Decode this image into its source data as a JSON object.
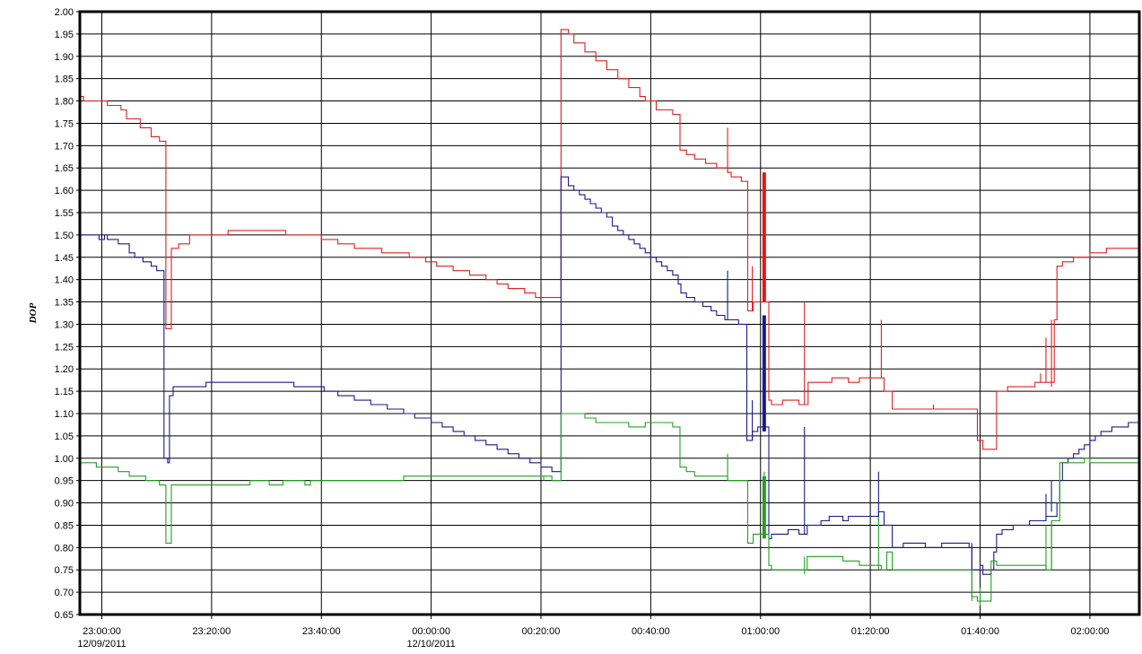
{
  "chart_data": {
    "type": "line",
    "ylabel": "DOP",
    "ylim": [
      0.65,
      2.0
    ],
    "ytick_step": 0.05,
    "xlim": [
      "2011-12-09T22:56:00",
      "2011-12-10T02:09:00"
    ],
    "grid": true,
    "x_ticks": [
      {
        "time": "2011-12-09T23:00:00",
        "label": "23:00:00",
        "sublabel": "12/09/2011"
      },
      {
        "time": "2011-12-09T23:20:00",
        "label": "23:20:00",
        "sublabel": ""
      },
      {
        "time": "2011-12-09T23:40:00",
        "label": "23:40:00",
        "sublabel": ""
      },
      {
        "time": "2011-12-10T00:00:00",
        "label": "00:00:00",
        "sublabel": "12/10/2011"
      },
      {
        "time": "2011-12-10T00:20:00",
        "label": "00:20:00",
        "sublabel": ""
      },
      {
        "time": "2011-12-10T00:40:00",
        "label": "00:40:00",
        "sublabel": ""
      },
      {
        "time": "2011-12-10T01:00:00",
        "label": "01:00:00",
        "sublabel": ""
      },
      {
        "time": "2011-12-10T01:20:00",
        "label": "01:20:00",
        "sublabel": ""
      },
      {
        "time": "2011-12-10T01:40:00",
        "label": "01:40:00",
        "sublabel": ""
      },
      {
        "time": "2011-12-10T02:00:00",
        "label": "02:00:00",
        "sublabel": ""
      }
    ],
    "series": [
      {
        "color": "#e02020",
        "step": true,
        "points": [
          [
            "22:56:00",
            1.81
          ],
          [
            "22:56:40",
            1.8
          ],
          [
            "23:01:00",
            1.79
          ],
          [
            "23:03:30",
            1.78
          ],
          [
            "23:04:30",
            1.76
          ],
          [
            "23:07:00",
            1.74
          ],
          [
            "23:09:00",
            1.72
          ],
          [
            "23:10:30",
            1.71
          ],
          [
            "23:11:40",
            1.29
          ],
          [
            "23:12:40",
            1.47
          ],
          [
            "23:14:00",
            1.48
          ],
          [
            "23:16:00",
            1.5
          ],
          [
            "23:23:00",
            1.51
          ],
          [
            "23:33:30",
            1.5
          ],
          [
            "23:40:00",
            1.49
          ],
          [
            "23:43:00",
            1.48
          ],
          [
            "23:46:00",
            1.47
          ],
          [
            "23:51:00",
            1.46
          ],
          [
            "23:56:00",
            1.45
          ],
          [
            "23:59:00",
            1.44
          ],
          [
            "00:01:00",
            1.43
          ],
          [
            "00:04:00",
            1.42
          ],
          [
            "00:07:00",
            1.41
          ],
          [
            "00:10:00",
            1.4
          ],
          [
            "00:12:00",
            1.39
          ],
          [
            "00:14:00",
            1.38
          ],
          [
            "00:17:00",
            1.37
          ],
          [
            "00:19:00",
            1.36
          ],
          [
            "00:23:40",
            1.96
          ],
          [
            "00:25:00",
            1.95
          ],
          [
            "00:26:00",
            1.93
          ],
          [
            "00:28:00",
            1.91
          ],
          [
            "00:30:00",
            1.89
          ],
          [
            "00:32:00",
            1.87
          ],
          [
            "00:34:00",
            1.85
          ],
          [
            "00:36:00",
            1.83
          ],
          [
            "00:38:00",
            1.81
          ],
          [
            "00:39:00",
            1.8
          ],
          [
            "00:41:00",
            1.78
          ],
          [
            "00:44:00",
            1.77
          ],
          [
            "00:45:20",
            1.69
          ],
          [
            "00:46:30",
            1.68
          ],
          [
            "00:48:00",
            1.67
          ],
          [
            "00:50:00",
            1.66
          ],
          [
            "00:52:00",
            1.65
          ],
          [
            "00:54:00",
            1.64
          ],
          [
            "00:54:40",
            1.63
          ],
          [
            "00:56:30",
            1.62
          ],
          [
            "00:57:40",
            1.33
          ],
          [
            "00:58:40",
            1.35
          ],
          [
            "01:01:30",
            1.13
          ],
          [
            "01:02:00",
            1.12
          ],
          [
            "01:04:00",
            1.13
          ],
          [
            "01:07:00",
            1.12
          ],
          [
            "01:08:40",
            1.17
          ],
          [
            "01:13:00",
            1.18
          ],
          [
            "01:16:00",
            1.17
          ],
          [
            "01:18:00",
            1.18
          ],
          [
            "01:22:30",
            1.15
          ],
          [
            "01:24:00",
            1.11
          ],
          [
            "01:39:30",
            1.04
          ],
          [
            "01:40:30",
            1.02
          ],
          [
            "01:43:00",
            1.15
          ],
          [
            "01:45:00",
            1.16
          ],
          [
            "01:50:00",
            1.17
          ],
          [
            "01:52:30",
            1.17
          ],
          [
            "01:53:30",
            1.31
          ],
          [
            "01:54:00",
            1.43
          ],
          [
            "01:55:00",
            1.44
          ],
          [
            "01:57:00",
            1.45
          ],
          [
            "02:00:00",
            1.46
          ],
          [
            "02:03:00",
            1.47
          ],
          [
            "02:09:00",
            1.47
          ]
        ],
        "spikes": [
          [
            "00:54:00",
            1.64,
            1.74
          ],
          [
            "00:58:30",
            1.33,
            1.43
          ],
          [
            "01:00:40",
            1.35,
            1.64
          ],
          [
            "01:08:00",
            1.12,
            1.35
          ],
          [
            "01:22:00",
            1.18,
            1.31
          ],
          [
            "01:31:30",
            1.11,
            1.12
          ],
          [
            "01:51:00",
            1.17,
            1.19
          ],
          [
            "01:52:00",
            1.17,
            1.27
          ],
          [
            "01:53:00",
            1.16,
            1.31
          ]
        ]
      },
      {
        "color": "#1a1a8c",
        "step": true,
        "points": [
          [
            "22:56:00",
            1.5
          ],
          [
            "22:59:30",
            1.49
          ],
          [
            "23:00:30",
            1.5
          ],
          [
            "23:01:00",
            1.49
          ],
          [
            "23:03:00",
            1.48
          ],
          [
            "23:05:00",
            1.46
          ],
          [
            "23:06:00",
            1.45
          ],
          [
            "23:07:30",
            1.44
          ],
          [
            "23:09:00",
            1.43
          ],
          [
            "23:10:00",
            1.42
          ],
          [
            "23:11:20",
            1.0
          ],
          [
            "23:12:00",
            0.99
          ],
          [
            "23:12:20",
            1.14
          ],
          [
            "23:13:00",
            1.16
          ],
          [
            "23:19:00",
            1.17
          ],
          [
            "23:28:00",
            1.17
          ],
          [
            "23:35:00",
            1.16
          ],
          [
            "23:40:30",
            1.15
          ],
          [
            "23:43:00",
            1.14
          ],
          [
            "23:46:00",
            1.13
          ],
          [
            "23:49:00",
            1.12
          ],
          [
            "23:52:00",
            1.11
          ],
          [
            "23:55:00",
            1.1
          ],
          [
            "23:57:00",
            1.09
          ],
          [
            "00:00:00",
            1.08
          ],
          [
            "00:02:00",
            1.07
          ],
          [
            "00:04:00",
            1.06
          ],
          [
            "00:06:00",
            1.05
          ],
          [
            "00:08:00",
            1.04
          ],
          [
            "00:10:00",
            1.03
          ],
          [
            "00:12:00",
            1.02
          ],
          [
            "00:14:00",
            1.01
          ],
          [
            "00:16:00",
            1.0
          ],
          [
            "00:18:00",
            0.99
          ],
          [
            "00:20:00",
            0.98
          ],
          [
            "00:22:00",
            0.97
          ],
          [
            "00:23:40",
            1.63
          ],
          [
            "00:25:00",
            1.61
          ],
          [
            "00:26:00",
            1.6
          ],
          [
            "00:27:00",
            1.59
          ],
          [
            "00:28:00",
            1.58
          ],
          [
            "00:29:00",
            1.57
          ],
          [
            "00:30:00",
            1.56
          ],
          [
            "00:31:00",
            1.55
          ],
          [
            "00:32:00",
            1.54
          ],
          [
            "00:33:00",
            1.52
          ],
          [
            "00:34:00",
            1.51
          ],
          [
            "00:35:00",
            1.5
          ],
          [
            "00:36:00",
            1.49
          ],
          [
            "00:37:00",
            1.48
          ],
          [
            "00:38:00",
            1.47
          ],
          [
            "00:39:00",
            1.46
          ],
          [
            "00:40:00",
            1.45
          ],
          [
            "00:41:00",
            1.44
          ],
          [
            "00:42:00",
            1.43
          ],
          [
            "00:43:00",
            1.42
          ],
          [
            "00:44:00",
            1.41
          ],
          [
            "00:45:00",
            1.39
          ],
          [
            "00:45:30",
            1.37
          ],
          [
            "00:46:30",
            1.36
          ],
          [
            "00:48:00",
            1.35
          ],
          [
            "00:49:30",
            1.34
          ],
          [
            "00:51:00",
            1.33
          ],
          [
            "00:52:00",
            1.32
          ],
          [
            "00:53:30",
            1.31
          ],
          [
            "00:55:00",
            1.31
          ],
          [
            "00:56:00",
            1.3
          ],
          [
            "00:57:30",
            1.04
          ],
          [
            "00:58:30",
            1.06
          ],
          [
            "00:59:30",
            1.07
          ],
          [
            "01:01:30",
            0.82
          ],
          [
            "01:02:00",
            0.83
          ],
          [
            "01:05:00",
            0.84
          ],
          [
            "01:07:00",
            0.83
          ],
          [
            "01:08:30",
            0.85
          ],
          [
            "01:11:00",
            0.86
          ],
          [
            "01:12:30",
            0.87
          ],
          [
            "01:15:00",
            0.86
          ],
          [
            "01:16:00",
            0.87
          ],
          [
            "01:20:00",
            0.87
          ],
          [
            "01:21:30",
            0.88
          ],
          [
            "01:22:30",
            0.85
          ],
          [
            "01:24:00",
            0.8
          ],
          [
            "01:26:00",
            0.81
          ],
          [
            "01:30:00",
            0.8
          ],
          [
            "01:33:00",
            0.81
          ],
          [
            "01:38:00",
            0.8
          ],
          [
            "01:38:30",
            0.75
          ],
          [
            "01:40:00",
            0.76
          ],
          [
            "01:40:30",
            0.74
          ],
          [
            "01:42:00",
            0.75
          ],
          [
            "01:42:30",
            0.79
          ],
          [
            "01:43:00",
            0.83
          ],
          [
            "01:44:00",
            0.84
          ],
          [
            "01:46:00",
            0.85
          ],
          [
            "01:48:00",
            0.85
          ],
          [
            "01:49:00",
            0.86
          ],
          [
            "01:51:00",
            0.86
          ],
          [
            "01:52:00",
            0.87
          ],
          [
            "01:54:00",
            0.9
          ],
          [
            "01:54:30",
            0.95
          ],
          [
            "01:55:00",
            0.99
          ],
          [
            "01:56:00",
            1.0
          ],
          [
            "01:57:00",
            1.01
          ],
          [
            "01:58:00",
            1.02
          ],
          [
            "01:59:00",
            1.03
          ],
          [
            "02:00:00",
            1.04
          ],
          [
            "02:01:00",
            1.05
          ],
          [
            "02:02:00",
            1.06
          ],
          [
            "02:04:00",
            1.07
          ],
          [
            "02:07:00",
            1.08
          ],
          [
            "02:09:00",
            1.08
          ]
        ],
        "spikes": [
          [
            "00:54:00",
            1.31,
            1.42
          ],
          [
            "00:58:30",
            1.04,
            1.13
          ],
          [
            "01:00:40",
            1.06,
            1.32
          ],
          [
            "01:08:00",
            0.83,
            1.07
          ],
          [
            "01:21:30",
            0.86,
            0.97
          ],
          [
            "01:38:30",
            0.74,
            0.81
          ],
          [
            "01:52:00",
            0.86,
            0.92
          ],
          [
            "01:53:00",
            0.88,
            0.95
          ]
        ]
      },
      {
        "color": "#22a022",
        "step": true,
        "points": [
          [
            "22:56:00",
            0.99
          ],
          [
            "22:59:00",
            0.98
          ],
          [
            "23:03:00",
            0.97
          ],
          [
            "23:05:00",
            0.96
          ],
          [
            "23:08:00",
            0.95
          ],
          [
            "23:10:30",
            0.94
          ],
          [
            "23:11:40",
            0.81
          ],
          [
            "23:12:40",
            0.94
          ],
          [
            "23:25:00",
            0.94
          ],
          [
            "23:27:00",
            0.95
          ],
          [
            "23:30:30",
            0.94
          ],
          [
            "23:33:00",
            0.95
          ],
          [
            "23:37:00",
            0.94
          ],
          [
            "23:38:00",
            0.95
          ],
          [
            "23:49:00",
            0.95
          ],
          [
            "23:55:00",
            0.96
          ],
          [
            "00:20:00",
            0.96
          ],
          [
            "00:22:00",
            0.95
          ],
          [
            "00:23:40",
            1.1
          ],
          [
            "00:28:00",
            1.09
          ],
          [
            "00:30:00",
            1.08
          ],
          [
            "00:36:00",
            1.07
          ],
          [
            "00:39:00",
            1.08
          ],
          [
            "00:44:00",
            1.07
          ],
          [
            "00:45:20",
            0.98
          ],
          [
            "00:46:30",
            0.97
          ],
          [
            "00:48:00",
            0.96
          ],
          [
            "00:54:00",
            0.95
          ],
          [
            "00:57:40",
            0.81
          ],
          [
            "00:58:40",
            0.83
          ],
          [
            "01:01:30",
            0.76
          ],
          [
            "01:02:00",
            0.75
          ],
          [
            "01:08:30",
            0.78
          ],
          [
            "01:15:00",
            0.77
          ],
          [
            "01:18:00",
            0.76
          ],
          [
            "01:22:00",
            0.75
          ],
          [
            "01:23:00",
            0.79
          ],
          [
            "01:24:00",
            0.75
          ],
          [
            "01:36:00",
            0.75
          ],
          [
            "01:38:30",
            0.69
          ],
          [
            "01:39:30",
            0.68
          ],
          [
            "01:40:30",
            0.68
          ],
          [
            "01:42:00",
            0.77
          ],
          [
            "01:43:00",
            0.76
          ],
          [
            "01:47:30",
            0.76
          ],
          [
            "01:52:00",
            0.75
          ],
          [
            "01:53:00",
            0.86
          ],
          [
            "01:54:30",
            0.99
          ],
          [
            "01:59:00",
            1.0
          ],
          [
            "02:00:00",
            0.99
          ],
          [
            "02:09:00",
            0.99
          ]
        ],
        "spikes": [
          [
            "00:20:30",
            0.95,
            0.96
          ],
          [
            "00:54:00",
            0.95,
            1.01
          ],
          [
            "01:00:40",
            0.83,
            0.97
          ],
          [
            "01:08:00",
            0.74,
            0.78
          ],
          [
            "01:21:30",
            0.75,
            0.87
          ],
          [
            "01:38:30",
            0.68,
            0.75
          ],
          [
            "01:40:00",
            0.67,
            0.71
          ],
          [
            "01:52:00",
            0.75,
            0.85
          ],
          [
            "01:53:00",
            0.75,
            0.86
          ]
        ]
      }
    ],
    "bold_bars": [
      {
        "color": "#ee1111",
        "time": "01:00:40",
        "from": 1.35,
        "to": 1.64
      },
      {
        "color": "#1a1a8c",
        "time": "01:00:40",
        "from": 1.06,
        "to": 1.32
      },
      {
        "color": "#22a022",
        "time": "01:00:40",
        "from": 0.82,
        "to": 0.96
      }
    ]
  }
}
